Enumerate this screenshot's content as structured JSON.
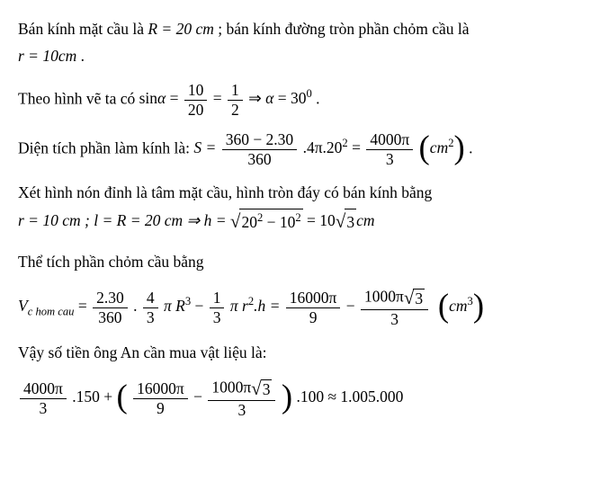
{
  "p1a": "Bán kính mặt cầu là ",
  "p1b": "R = 20 cm",
  "p1c": "; bán kính đường tròn phần chỏm cầu là",
  "p1d": "r = 10cm",
  "p1e": ".",
  "p2a": "Theo hình vẽ ta có ",
  "p2b": "sin",
  "p2c": "α",
  "p2d": " = ",
  "frac1n": "10",
  "frac1d": "20",
  "p2e": " = ",
  "frac2n": "1",
  "frac2d": "2",
  "p2f": " ⇒ ",
  "p2g": "α",
  "p2h": " = 30",
  "p2i": "0",
  "p2j": " .",
  "p3a": "Diện tích phần làm kính là: ",
  "p3b": "S = ",
  "frac3n": "360 − 2.30",
  "frac3d": "360",
  "p3c": ".4π.20",
  "p3d": "2",
  "p3e": " = ",
  "frac4n": "4000π",
  "frac4d": "3",
  "p3f": "cm",
  "p3g": "2",
  "p3h": " .",
  "p4a": "Xét hình nón đỉnh là tâm mặt cầu, hình tròn đáy có bán kính bằng",
  "p4b": "r = 10 cm ; l = R = 20 cm ⇒ h = ",
  "sqrt1": "20",
  "sqrt1a": "2",
  "sqrt1b": " − 10",
  "sqrt1c": "2",
  "p4c": " = 10",
  "sqrt2": "3",
  "p4d": "cm",
  "p5a": "Thể tích phần chỏm cầu bằng",
  "p6a": "V",
  "p6sub": "c hom cau",
  "p6b": " = ",
  "frac5n": "2.30",
  "frac5d": "360",
  "p6c": ".",
  "frac6n": "4",
  "frac6d": "3",
  "p6d": "π R",
  "p6e": "3",
  "p6f": " − ",
  "frac7n": "1",
  "frac7d": "3",
  "p6g": "π r",
  "p6h": "2",
  "p6i": ".h = ",
  "frac8n": "16000π",
  "frac8d": "9",
  "p6j": " − ",
  "frac9na": "1000π",
  "frac9nb": "3",
  "frac9d": "3",
  "p6k": "cm",
  "p6l": "3",
  "p7a": "Vậy số tiền ông An cần mua vật liệu là:",
  "frac10n": "4000π",
  "frac10d": "3",
  "p8a": ".150 + ",
  "frac11n": "16000π",
  "frac11d": "9",
  "p8b": " − ",
  "frac12na": "1000π",
  "frac12nb": "3",
  "frac12d": "3",
  "p8c": ".100 ≈ 1.005.000",
  "style": {
    "font_family": "Times New Roman",
    "font_size_pt": 13,
    "text_color": "#000000",
    "background_color": "#ffffff",
    "line_height": 1.7
  }
}
